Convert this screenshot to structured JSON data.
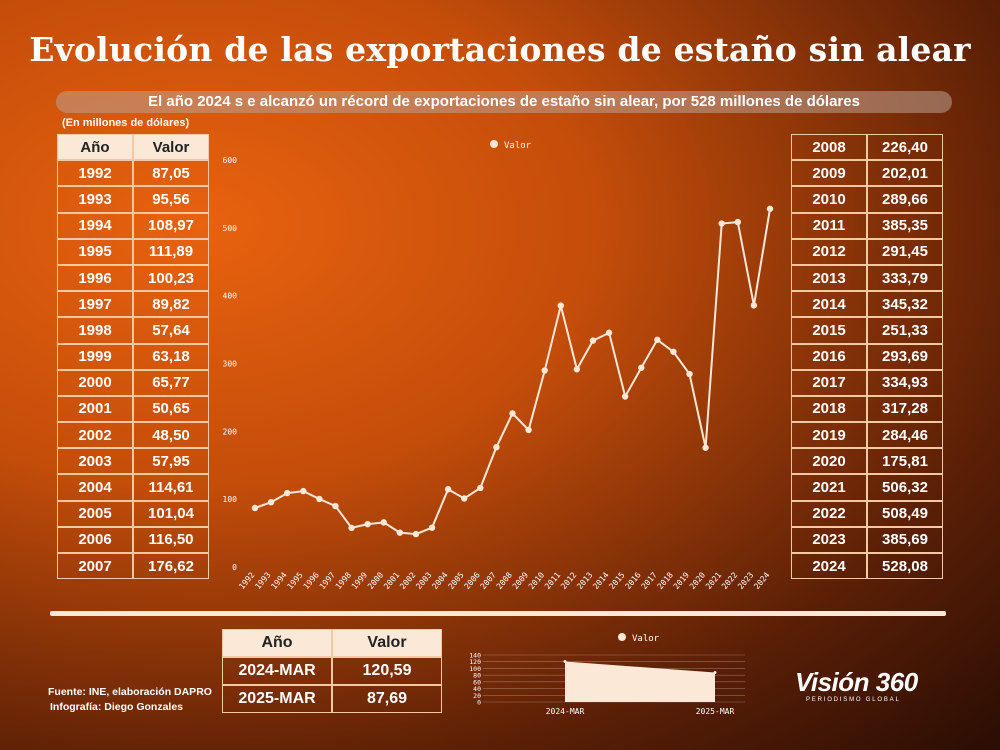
{
  "title": "Evolución de las exportaciones de estaño sin alear",
  "subtitle": "El año 2024 s e alcanzó un récord de exportaciones de estaño sin alear, por 528 millones de dólares",
  "unit_note": "(En millones de dólares)",
  "table_headers": {
    "year": "Año",
    "value": "Valor"
  },
  "left_table": [
    [
      "1992",
      "87,05"
    ],
    [
      "1993",
      "95,56"
    ],
    [
      "1994",
      "108,97"
    ],
    [
      "1995",
      "111,89"
    ],
    [
      "1996",
      "100,23"
    ],
    [
      "1997",
      "89,82"
    ],
    [
      "1998",
      "57,64"
    ],
    [
      "1999",
      "63,18"
    ],
    [
      "2000",
      "65,77"
    ],
    [
      "2001",
      "50,65"
    ],
    [
      "2002",
      "48,50"
    ],
    [
      "2003",
      "57,95"
    ],
    [
      "2004",
      "114,61"
    ],
    [
      "2005",
      "101,04"
    ],
    [
      "2006",
      "116,50"
    ],
    [
      "2007",
      "176,62"
    ]
  ],
  "right_table": [
    [
      "2008",
      "226,40"
    ],
    [
      "2009",
      "202,01"
    ],
    [
      "2010",
      "289,66"
    ],
    [
      "2011",
      "385,35"
    ],
    [
      "2012",
      "291,45"
    ],
    [
      "2013",
      "333,79"
    ],
    [
      "2014",
      "345,32"
    ],
    [
      "2015",
      "251,33"
    ],
    [
      "2016",
      "293,69"
    ],
    [
      "2017",
      "334,93"
    ],
    [
      "2018",
      "317,28"
    ],
    [
      "2019",
      "284,46"
    ],
    [
      "2020",
      "175,81"
    ],
    [
      "2021",
      "506,32"
    ],
    [
      "2022",
      "508,49"
    ],
    [
      "2023",
      "385,69"
    ],
    [
      "2024",
      "528,08"
    ]
  ],
  "bottom_table": [
    [
      "2024-MAR",
      "120,59"
    ],
    [
      "2025-MAR",
      "87,69"
    ]
  ],
  "footer": {
    "source": "Fuente: INE, elaboración DAPRO",
    "credit": "Infografía: Diego Gonzales"
  },
  "logo": {
    "name": "Visión 360",
    "tagline": "PERIODISMO GLOBAL"
  },
  "colors": {
    "line": "#fbe8d6",
    "accent": "#e8620f"
  },
  "chart_data": [
    {
      "type": "line",
      "legend": "Valor",
      "legend_position": "top",
      "x": [
        "1992",
        "1993",
        "1994",
        "1995",
        "1996",
        "1997",
        "1998",
        "1999",
        "2000",
        "2001",
        "2002",
        "2003",
        "2004",
        "2005",
        "2006",
        "2007",
        "2008",
        "2009",
        "2010",
        "2011",
        "2012",
        "2013",
        "2014",
        "2015",
        "2016",
        "2017",
        "2018",
        "2019",
        "2020",
        "2021",
        "2022",
        "2023",
        "2024"
      ],
      "series": [
        {
          "name": "Valor",
          "values": [
            87.05,
            95.56,
            108.97,
            111.89,
            100.23,
            89.82,
            57.64,
            63.18,
            65.77,
            50.65,
            48.5,
            57.95,
            114.61,
            101.04,
            116.5,
            176.62,
            226.4,
            202.01,
            289.66,
            385.35,
            291.45,
            333.79,
            345.32,
            251.33,
            293.69,
            334.93,
            317.28,
            284.46,
            175.81,
            506.32,
            508.49,
            385.69,
            528.08
          ]
        }
      ],
      "yticks": [
        0,
        100,
        200,
        300,
        400,
        500,
        600
      ],
      "ylim": [
        0,
        600
      ],
      "grid": false
    },
    {
      "type": "area",
      "legend": "Valor",
      "legend_position": "top",
      "x": [
        "2024-MAR",
        "2025-MAR"
      ],
      "series": [
        {
          "name": "Valor",
          "values": [
            120.59,
            87.69
          ]
        }
      ],
      "yticks": [
        0,
        20,
        40,
        60,
        80,
        100,
        120,
        140
      ],
      "ylim": [
        0,
        140
      ],
      "grid": true
    }
  ]
}
